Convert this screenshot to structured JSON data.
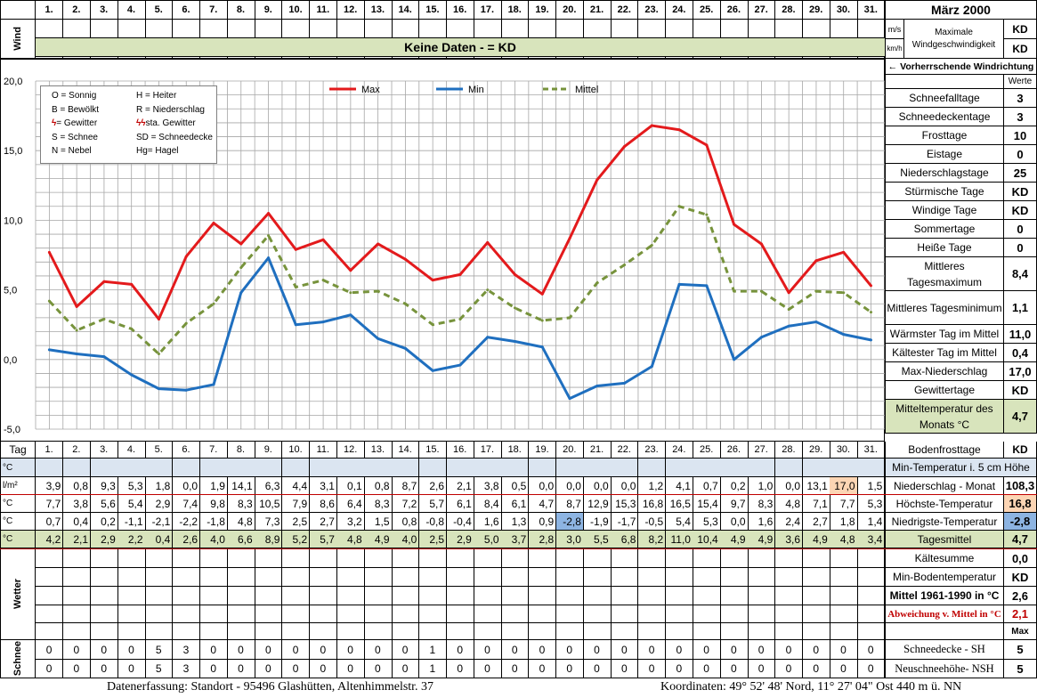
{
  "title": "März 2000",
  "days": [
    "1.",
    "2.",
    "3.",
    "4.",
    "5.",
    "6.",
    "7.",
    "8.",
    "9.",
    "10.",
    "11.",
    "12.",
    "13.",
    "14.",
    "15.",
    "16.",
    "17.",
    "18.",
    "19.",
    "20.",
    "21.",
    "22.",
    "23.",
    "24.",
    "25.",
    "26.",
    "27.",
    "28.",
    "29.",
    "30.",
    "31."
  ],
  "wind": {
    "label": "Wind",
    "banner": "Keine Daten -  = KD",
    "unit_ms": "m/s",
    "unit_kmh": "km/h",
    "max_label_1": "Maximale",
    "max_label_2": "Windgeschwindigkeit",
    "max_ms": "KD",
    "max_kmh": "KD",
    "direction_label": "← Vorherrschende Windrichtung"
  },
  "legend_symbols": [
    [
      "O = Sonnig",
      "H = Heiter"
    ],
    [
      "B = Bewölkt",
      "R = Niederschlag"
    ],
    [
      "= Gewitter",
      "sta. Gewitter"
    ],
    [
      "S = Schnee",
      "SD = Schneedecke"
    ],
    [
      "N = Nebel",
      "Hg= Hagel"
    ]
  ],
  "chart_data": {
    "type": "line",
    "categories": [
      "1.",
      "2.",
      "3.",
      "4.",
      "5.",
      "6.",
      "7.",
      "8.",
      "9.",
      "10.",
      "11.",
      "12.",
      "13.",
      "14.",
      "15.",
      "16.",
      "17.",
      "18.",
      "19.",
      "20.",
      "21.",
      "22.",
      "23.",
      "24.",
      "25.",
      "26.",
      "27.",
      "28.",
      "29.",
      "30.",
      "31."
    ],
    "ylim": [
      -5,
      20
    ],
    "yticks": [
      "20,0",
      "15,0",
      "10,0",
      "5,0",
      "0,0",
      "-5,0"
    ],
    "grid": true,
    "legend_position": "top",
    "series": [
      {
        "name": "Max",
        "color": "#e31a1c",
        "values": [
          7.7,
          3.8,
          5.6,
          5.4,
          2.9,
          7.4,
          9.8,
          8.3,
          10.5,
          7.9,
          8.6,
          6.4,
          8.3,
          7.2,
          5.7,
          6.1,
          8.4,
          6.1,
          4.7,
          8.7,
          12.9,
          15.3,
          16.8,
          16.5,
          15.4,
          9.7,
          8.3,
          4.8,
          7.1,
          7.7,
          5.3
        ]
      },
      {
        "name": "Min",
        "color": "#1f6fbf",
        "values": [
          0.7,
          0.4,
          0.2,
          -1.1,
          -2.1,
          -2.2,
          -1.8,
          4.8,
          7.3,
          2.5,
          2.7,
          3.2,
          1.5,
          0.8,
          -0.8,
          -0.4,
          1.6,
          1.3,
          0.9,
          -2.8,
          -1.9,
          -1.7,
          -0.5,
          5.4,
          5.3,
          0.0,
          1.6,
          2.4,
          2.7,
          1.8,
          1.4
        ]
      },
      {
        "name": "Mittel",
        "color": "#77933c",
        "values": [
          4.2,
          2.1,
          2.9,
          2.2,
          0.4,
          2.6,
          4.0,
          6.6,
          8.9,
          5.2,
          5.7,
          4.8,
          4.9,
          4.0,
          2.5,
          2.9,
          5.0,
          3.7,
          2.8,
          3.0,
          5.5,
          6.8,
          8.2,
          11.0,
          10.4,
          4.9,
          4.9,
          3.6,
          4.9,
          4.8,
          3.4
        ]
      }
    ]
  },
  "stats_header": "Werte",
  "stats": [
    {
      "label": "Schneefalltage",
      "value": "3"
    },
    {
      "label": "Schneedeckentage",
      "value": "3"
    },
    {
      "label": "Frosttage",
      "value": "10"
    },
    {
      "label": "Eistage",
      "value": "0"
    },
    {
      "label": "Niederschlagstage",
      "value": "25"
    },
    {
      "label": "Stürmische Tage",
      "value": "KD"
    },
    {
      "label": "Windige Tage",
      "value": "KD"
    },
    {
      "label": "Sommertage",
      "value": "0"
    },
    {
      "label": "Heiße Tage",
      "value": "0"
    },
    {
      "label": "Mittleres Tagesmaximum",
      "value": "8,4"
    },
    {
      "label": "Mittleres Tagesminimum",
      "value": "1,1"
    },
    {
      "label": "Wärmster Tag im Mittel",
      "value": "11,0"
    },
    {
      "label": "Kältester Tag im Mittel",
      "value": "0,4"
    },
    {
      "label": "Max-Niederschlag",
      "value": "17,0"
    },
    {
      "label": "Gewittertage",
      "value": "KD"
    },
    {
      "label": "Mitteltemperatur des Monats °C",
      "value": "4,7"
    }
  ],
  "tag_label": "Tag",
  "bodenfrost": {
    "label": "Bodenfrosttage",
    "value": "KD"
  },
  "min_temp_5cm_label": "Min-Temperatur i. 5 cm Höhe",
  "unit_c": "°C",
  "unit_lm2": "l/m²",
  "rows": {
    "niederschlag": {
      "label": "Niederschlag - Monat",
      "total": "108,3",
      "values": [
        "3,9",
        "0,8",
        "9,3",
        "5,3",
        "1,8",
        "0,0",
        "1,9",
        "14,1",
        "6,3",
        "4,4",
        "3,1",
        "0,1",
        "0,8",
        "8,7",
        "2,6",
        "2,1",
        "3,8",
        "0,5",
        "0,0",
        "0,0",
        "0,0",
        "0,0",
        "1,2",
        "4,1",
        "0,7",
        "0,2",
        "1,0",
        "0,0",
        "13,1",
        "17,0",
        "1,5"
      ]
    },
    "hoechst": {
      "label": "Höchste-Temperatur",
      "total": "16,8",
      "values": [
        "7,7",
        "3,8",
        "5,6",
        "5,4",
        "2,9",
        "7,4",
        "9,8",
        "8,3",
        "10,5",
        "7,9",
        "8,6",
        "6,4",
        "8,3",
        "7,2",
        "5,7",
        "6,1",
        "8,4",
        "6,1",
        "4,7",
        "8,7",
        "12,9",
        "15,3",
        "16,8",
        "16,5",
        "15,4",
        "9,7",
        "8,3",
        "4,8",
        "7,1",
        "7,7",
        "5,3"
      ]
    },
    "niedrigst": {
      "label": "Niedrigste-Temperatur",
      "total": "-2,8",
      "values": [
        "0,7",
        "0,4",
        "0,2",
        "-1,1",
        "-2,1",
        "-2,2",
        "-1,8",
        "4,8",
        "7,3",
        "2,5",
        "2,7",
        "3,2",
        "1,5",
        "0,8",
        "-0,8",
        "-0,4",
        "1,6",
        "1,3",
        "0,9",
        "-2,8",
        "-1,9",
        "-1,7",
        "-0,5",
        "5,4",
        "5,3",
        "0,0",
        "1,6",
        "2,4",
        "2,7",
        "1,8",
        "1,4"
      ]
    },
    "tagesmittel": {
      "label": "Tagesmittel",
      "total": "4,7",
      "values": [
        "4,2",
        "2,1",
        "2,9",
        "2,2",
        "0,4",
        "2,6",
        "4,0",
        "6,6",
        "8,9",
        "5,2",
        "5,7",
        "4,8",
        "4,9",
        "4,0",
        "2,5",
        "2,9",
        "5,0",
        "3,7",
        "2,8",
        "3,0",
        "5,5",
        "6,8",
        "8,2",
        "11,0",
        "10,4",
        "4,9",
        "4,9",
        "3,6",
        "4,9",
        "4,8",
        "3,4"
      ]
    }
  },
  "kaeltesumme": {
    "label": "Kältesumme",
    "value": "0,0"
  },
  "wetter_label": "Wetter",
  "min_boden": {
    "label": "Min-Bodentemperatur",
    "value": "KD"
  },
  "mittel_1961": {
    "label": "Mittel 1961-1990 in °C",
    "value": "2,6"
  },
  "abweichung": {
    "label": "Abweichung v. Mittel in °C",
    "value": "2,1"
  },
  "max_label": "Max",
  "schnee_label": "Schnee",
  "schneedecke": {
    "label": "Schneedecke -  SH",
    "value": "5",
    "values": [
      "0",
      "0",
      "0",
      "0",
      "5",
      "3",
      "0",
      "0",
      "0",
      "0",
      "0",
      "0",
      "0",
      "0",
      "1",
      "0",
      "0",
      "0",
      "0",
      "0",
      "0",
      "0",
      "0",
      "0",
      "0",
      "0",
      "0",
      "0",
      "0",
      "0",
      "0"
    ]
  },
  "neuschnee": {
    "label": "Neuschneehöhe- NSH",
    "value": "5",
    "values": [
      "0",
      "0",
      "0",
      "0",
      "5",
      "3",
      "0",
      "0",
      "0",
      "0",
      "0",
      "0",
      "0",
      "0",
      "1",
      "0",
      "0",
      "0",
      "0",
      "0",
      "0",
      "0",
      "0",
      "0",
      "0",
      "0",
      "0",
      "0",
      "0",
      "0",
      "0"
    ]
  },
  "footer_left": "Datenerfassung:  Standort -  95496  Glashütten, Altenhimmelstr. 37",
  "footer_right": "Koordinaten:  49° 52' 48' Nord,  11° 27' 04\" Ost   440 m ü. NN",
  "colors": {
    "highlight_min": "#8db4e2",
    "highlight_max": "#fcd5b4"
  }
}
